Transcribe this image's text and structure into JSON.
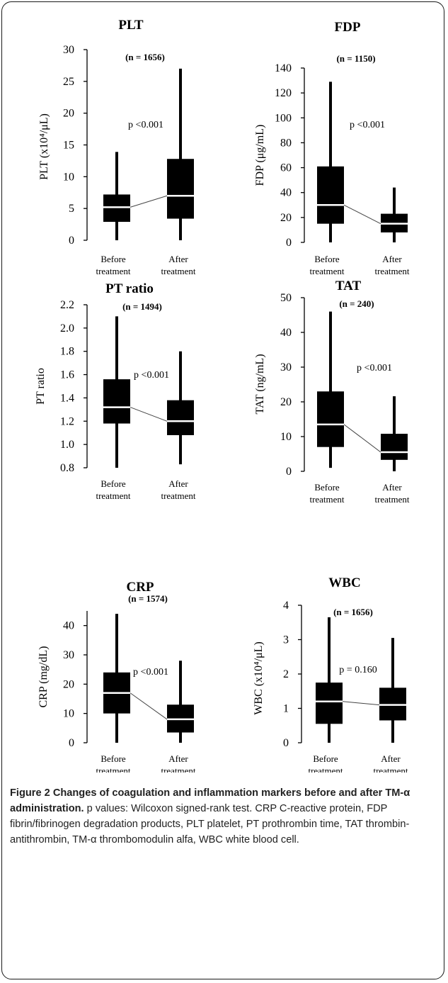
{
  "chart_data": [
    {
      "type": "box",
      "title": "PLT",
      "ylabel": "PLT (x10⁴/μL)",
      "ylim": [
        0,
        30
      ],
      "yticks": [
        "0",
        "5",
        "10",
        "15",
        "20",
        "25",
        "30"
      ],
      "categories": [
        "Before\ntreatment",
        "After\ntreatment"
      ],
      "n_label": "(n = 1656)",
      "p_label": "p <0.001",
      "boxes": [
        {
          "min": 0,
          "q1": 2.9,
          "median": 5.2,
          "q3": 7.2,
          "max": 13.9
        },
        {
          "min": 0,
          "q1": 3.4,
          "median": 7.0,
          "q3": 12.8,
          "max": 27.0
        }
      ]
    },
    {
      "type": "box",
      "title": "FDP",
      "ylabel": "FDP (μg/mL)",
      "ylim": [
        0,
        140
      ],
      "yticks": [
        "0",
        "20",
        "40",
        "60",
        "80",
        "100",
        "120",
        "140"
      ],
      "categories": [
        "Before\ntreatment",
        "After\ntreatment"
      ],
      "n_label": "(n = 1150)",
      "p_label": "p <0.001",
      "boxes": [
        {
          "min": 0,
          "q1": 15,
          "median": 30,
          "q3": 61,
          "max": 129
        },
        {
          "min": 0,
          "q1": 8,
          "median": 15,
          "q3": 23,
          "max": 44
        }
      ]
    },
    {
      "type": "box",
      "title": "PT ratio",
      "ylabel": "PT ratio",
      "ylim": [
        0.8,
        2.2
      ],
      "yticks": [
        "0.8",
        "1.0",
        "1.2",
        "1.4",
        "1.6",
        "1.8",
        "2.0",
        "2.2"
      ],
      "categories": [
        "Before\ntreatment",
        "After\ntreatment"
      ],
      "n_label": "(n = 1494)",
      "p_label": "p <0.001",
      "boxes": [
        {
          "min": 0.8,
          "q1": 1.18,
          "median": 1.32,
          "q3": 1.56,
          "max": 2.1
        },
        {
          "min": 0.83,
          "q1": 1.08,
          "median": 1.2,
          "q3": 1.38,
          "max": 1.8
        }
      ]
    },
    {
      "type": "box",
      "title": "TAT",
      "ylabel": "TAT (ng/mL)",
      "ylim": [
        0,
        50
      ],
      "yticks": [
        "0",
        "10",
        "20",
        "30",
        "40",
        "50"
      ],
      "categories": [
        "Before\ntreatment",
        "After\ntreatment"
      ],
      "n_label": "(n = 240)",
      "p_label": "p <0.001",
      "boxes": [
        {
          "min": 1,
          "q1": 7,
          "median": 13.5,
          "q3": 23,
          "max": 46
        },
        {
          "min": 0,
          "q1": 3.3,
          "median": 5.5,
          "q3": 10.8,
          "max": 21.6
        }
      ]
    },
    {
      "type": "box",
      "title": "CRP",
      "ylabel": "CRP (mg/dL)",
      "ylim": [
        0,
        45
      ],
      "yticks": [
        "0",
        "10",
        "20",
        "30",
        "40"
      ],
      "categories": [
        "Before\ntreatment",
        "After\ntreatment"
      ],
      "n_label": "(n = 1574)",
      "p_label": "p <0.001",
      "boxes": [
        {
          "min": 0,
          "q1": 10,
          "median": 17,
          "q3": 24,
          "max": 44
        },
        {
          "min": 0,
          "q1": 3.5,
          "median": 8,
          "q3": 13,
          "max": 28
        }
      ]
    },
    {
      "type": "box",
      "title": "WBC",
      "ylabel": "WBC (x10⁴/μL)",
      "ylim": [
        0,
        4
      ],
      "yticks": [
        "0",
        "1",
        "2",
        "3",
        "4"
      ],
      "categories": [
        "Before\ntreatment",
        "After\ntreatment"
      ],
      "n_label": "(n = 1656)",
      "p_label": "p = 0.160",
      "boxes": [
        {
          "min": 0,
          "q1": 0.55,
          "median": 1.2,
          "q3": 1.75,
          "max": 3.65
        },
        {
          "min": 0,
          "q1": 0.65,
          "median": 1.1,
          "q3": 1.6,
          "max": 3.05
        }
      ]
    }
  ],
  "caption": {
    "bold": "Figure 2 Changes of coagulation and inflammation markers before and after TM-α administration.",
    "rest": " p values: Wilcoxon signed-rank test. CRP C-reactive protein, FDP fibrin/fibrinogen degradation products, PLT platelet, PT prothrombin time, TAT thrombin-antithrombin, TM-α thrombomodulin alfa, WBC white blood cell."
  }
}
